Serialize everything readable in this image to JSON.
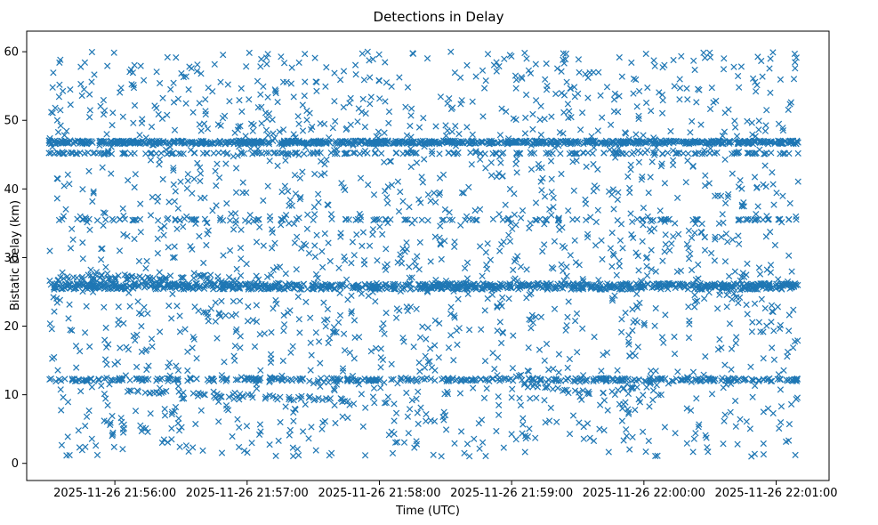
{
  "chart_data": {
    "type": "scatter",
    "title": "Detections in Delay",
    "xlabel": "Time (UTC)",
    "ylabel": "Bistatic Delay (km)",
    "marker": "x",
    "color": "#1f77b4",
    "x_domain_seconds": [
      -40,
      324
    ],
    "data_range_seconds": [
      0,
      300
    ],
    "ylim": [
      -2.5,
      63
    ],
    "x_ticks": [
      {
        "value": 0,
        "label": "2025-11-26 21:56:00"
      },
      {
        "value": 60,
        "label": "2025-11-26 21:57:00"
      },
      {
        "value": 120,
        "label": "2025-11-26 21:58:00"
      },
      {
        "value": 180,
        "label": "2025-11-26 21:59:00"
      },
      {
        "value": 240,
        "label": "2025-11-26 22:00:00"
      },
      {
        "value": 300,
        "label": "2025-11-26 22:01:00"
      }
    ],
    "y_ticks": [
      {
        "value": 0,
        "label": "0"
      },
      {
        "value": 10,
        "label": "10"
      },
      {
        "value": 20,
        "label": "20"
      },
      {
        "value": 30,
        "label": "30"
      },
      {
        "value": 40,
        "label": "40"
      },
      {
        "value": 50,
        "label": "50"
      },
      {
        "value": 60,
        "label": "60"
      }
    ],
    "series": [
      {
        "name": "band-47km",
        "kind": "band",
        "y": 46.8,
        "spread": 0.25,
        "t_range": [
          -30,
          310
        ],
        "density": 1.2
      },
      {
        "name": "band-45km",
        "kind": "band",
        "y": 45.2,
        "spread": 0.1,
        "t_range": [
          -30,
          310
        ],
        "density": 0.3
      },
      {
        "name": "band-26km",
        "kind": "band",
        "y": 25.8,
        "spread": 0.45,
        "t_range": [
          -30,
          310
        ],
        "density": 1.2
      },
      {
        "name": "band-27km",
        "kind": "band",
        "y": 27.0,
        "spread": 0.5,
        "t_range": [
          -30,
          60
        ],
        "density": 0.35
      },
      {
        "name": "band-35km",
        "kind": "band",
        "y": 35.5,
        "spread": 0.1,
        "t_range": [
          -30,
          310
        ],
        "density": 0.18
      },
      {
        "name": "band-12km",
        "kind": "band",
        "y": 12.2,
        "spread": 0.25,
        "t_range": [
          -30,
          310
        ],
        "density": 0.55
      },
      {
        "name": "track-descending",
        "kind": "track",
        "points": [
          [
            5,
            10.5
          ],
          [
            60,
            9.8
          ],
          [
            110,
            9.2
          ]
        ],
        "spread": 0.3,
        "density": 0.6
      },
      {
        "name": "track-right",
        "kind": "track",
        "points": [
          [
            185,
            11.5
          ],
          [
            220,
            10.0
          ],
          [
            245,
            12.0
          ]
        ],
        "spread": 0.3,
        "density": 0.5
      },
      {
        "name": "noise",
        "kind": "noise",
        "count": 1900,
        "y_range": [
          1,
          60
        ],
        "t_range": [
          -30,
          310
        ]
      }
    ]
  }
}
